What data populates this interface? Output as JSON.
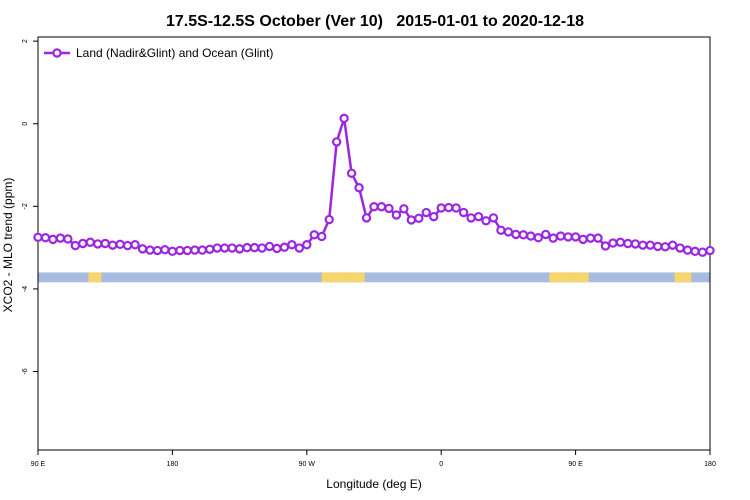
{
  "chart_data": {
    "type": "line",
    "title": "17.5S-12.5S October (Ver 10)   2015-01-01 to 2020-12-18",
    "xlabel": "Longitude (deg E)",
    "ylabel": "XCO2 - MLO trend (ppm)",
    "xlim": [
      90,
      450
    ],
    "ylim": [
      -7.9,
      2.1
    ],
    "x_ticks": [
      {
        "value": 90,
        "label": "90 E"
      },
      {
        "value": 162,
        "label": "180"
      },
      {
        "value": 234,
        "label": "90 W"
      },
      {
        "value": 306,
        "label": "0"
      },
      {
        "value": 378,
        "label": "90 E"
      },
      {
        "value": 450,
        "label": "180"
      }
    ],
    "y_ticks": [
      {
        "value": 2,
        "label": "2"
      },
      {
        "value": 0,
        "label": "0"
      },
      {
        "value": -2,
        "label": "-2"
      },
      {
        "value": -4,
        "label": "-4"
      },
      {
        "value": -6,
        "label": "-6"
      }
    ],
    "legend": {
      "position": "top-left"
    },
    "colors": {
      "series": "#9b27e0",
      "ocean": "#a7bcdf",
      "land": "#f7d56d"
    },
    "land_ocean_band": {
      "y_center": -3.72,
      "y_half_height": 0.12,
      "land_segments": [
        [
          117,
          124
        ],
        [
          242,
          254
        ],
        [
          254,
          265
        ],
        [
          364,
          378
        ],
        [
          378,
          385
        ],
        [
          431,
          440
        ]
      ]
    },
    "series": [
      {
        "name": "Land (Nadir&Glint) and Ocean (Glint)",
        "x": [
          90,
          94,
          98,
          102,
          106,
          110,
          114,
          118,
          122,
          126,
          130,
          134,
          138,
          142,
          146,
          150,
          154,
          158,
          162,
          166,
          170,
          174,
          178,
          182,
          186,
          190,
          194,
          198,
          202,
          206,
          210,
          214,
          218,
          222,
          226,
          230,
          234,
          238,
          242,
          246,
          250,
          254,
          258,
          262,
          266,
          270,
          274,
          278,
          282,
          286,
          290,
          294,
          298,
          302,
          306,
          310,
          314,
          318,
          322,
          326,
          330,
          334,
          338,
          342,
          346,
          350,
          354,
          358,
          362,
          366,
          370,
          374,
          378,
          382,
          386,
          390,
          394,
          398,
          402,
          406,
          410,
          414,
          418,
          422,
          426,
          430,
          434,
          438,
          442,
          446,
          450
        ],
        "y": [
          -2.75,
          -2.76,
          -2.8,
          -2.77,
          -2.79,
          -2.95,
          -2.9,
          -2.87,
          -2.91,
          -2.9,
          -2.94,
          -2.92,
          -2.95,
          -2.93,
          -3.03,
          -3.06,
          -3.07,
          -3.05,
          -3.09,
          -3.07,
          -3.07,
          -3.06,
          -3.06,
          -3.04,
          -3.01,
          -3.01,
          -3.01,
          -3.03,
          -3.0,
          -3.0,
          -3.01,
          -2.97,
          -3.02,
          -2.99,
          -2.93,
          -3.01,
          -2.93,
          -2.69,
          -2.73,
          -2.32,
          -0.44,
          0.13,
          -1.2,
          -1.55,
          -2.28,
          -2.01,
          -2.01,
          -2.05,
          -2.21,
          -2.06,
          -2.33,
          -2.29,
          -2.15,
          -2.25,
          -2.04,
          -2.03,
          -2.04,
          -2.15,
          -2.28,
          -2.25,
          -2.35,
          -2.28,
          -2.58,
          -2.62,
          -2.68,
          -2.69,
          -2.72,
          -2.76,
          -2.68,
          -2.77,
          -2.72,
          -2.74,
          -2.74,
          -2.8,
          -2.77,
          -2.77,
          -2.96,
          -2.89,
          -2.87,
          -2.9,
          -2.91,
          -2.94,
          -2.94,
          -2.97,
          -2.98,
          -2.94,
          -3.01,
          -3.06,
          -3.09,
          -3.11,
          -3.07
        ]
      }
    ]
  }
}
